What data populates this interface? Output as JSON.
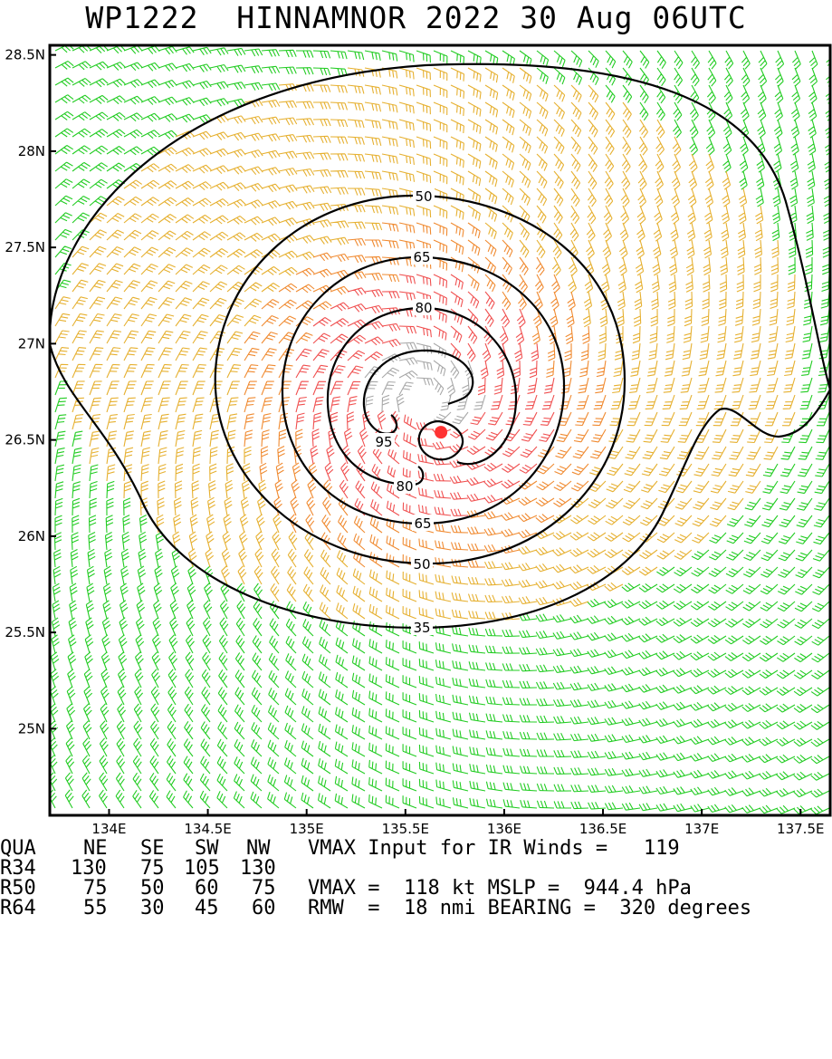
{
  "title": "WP1222  HINNAMNOR 2022 30 Aug 06UTC",
  "colors": {
    "calm_lt35": "#22cc22",
    "band_35_50": "#e6b030",
    "band_50_65": "#f08a30",
    "band_65_95": "#f05050",
    "band_gt95": "#a8a8a8",
    "center": "#ff3333",
    "contour": "#000000"
  },
  "map": {
    "lon_range": [
      133.7,
      137.65
    ],
    "lat_range": [
      24.55,
      28.55
    ],
    "lat_ticks": [
      "28.5N",
      "28N",
      "27.5N",
      "27N",
      "26.5N",
      "26N",
      "25.5N",
      "25N"
    ],
    "lat_values": [
      28.5,
      28.0,
      27.5,
      27.0,
      26.5,
      26.0,
      25.5,
      25.0
    ],
    "lon_ticks": [
      "134E",
      "134.5E",
      "135E",
      "135.5E",
      "136E",
      "136.5E",
      "137E",
      "137.5E"
    ],
    "lon_values": [
      134.0,
      134.5,
      135.0,
      135.5,
      136.0,
      136.5,
      137.0,
      137.5
    ],
    "center": {
      "lon": 135.68,
      "lat": 26.54
    },
    "contour_labels": [
      "35",
      "50",
      "65",
      "80",
      "95",
      "80",
      "65",
      "50"
    ]
  },
  "info": {
    "header": {
      "qua": "QUA",
      "ne": "NE",
      "se": "SE",
      "sw": "SW",
      "nw": "NW",
      "note": "VMAX Input for IR Winds =   119"
    },
    "r34": {
      "label": "R34",
      "ne": "130",
      "se": "75",
      "sw": "105",
      "nw": "130",
      "note": ""
    },
    "r50": {
      "label": "R50",
      "ne": "75",
      "se": "50",
      "sw": "60",
      "nw": "75",
      "note": "VMAX =  118 kt MSLP =  944.4 hPa"
    },
    "r64": {
      "label": "R64",
      "ne": "55",
      "se": "30",
      "sw": "45",
      "nw": "60",
      "note": "RMW  =  18 nmi BEARING =  320 degrees"
    }
  }
}
